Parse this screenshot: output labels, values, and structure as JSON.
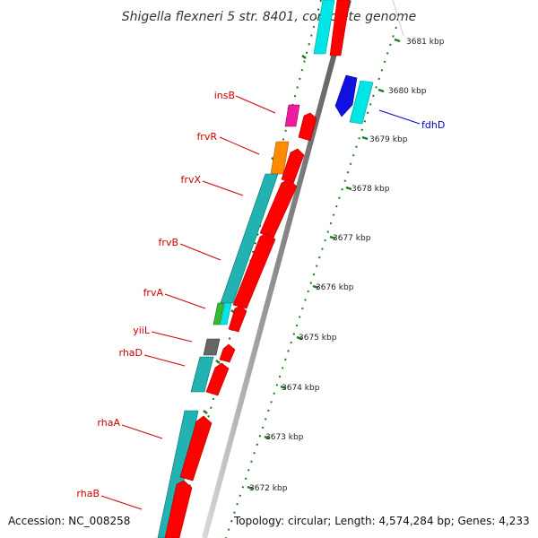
{
  "title": "Shigella flexneri 5 str. 8401, complete genome",
  "accession": "Accession: NC_008258",
  "topology": "Topology: circular; Length: 4,574,284 bp; Genes: 4,233",
  "colors": {
    "gene_label": "#cc0000",
    "fdhD_label": "#0000cc",
    "tick": "#1f7a1f",
    "track_gray": "#909090",
    "red_arrow": "#ff0000",
    "cyan": "#00e5e5",
    "teal": "#22b2b2",
    "magenta": "#ee1c9c",
    "orange": "#ff8a00",
    "green": "#33bb33",
    "gray_gene": "#666666",
    "blue": "#1010e0"
  },
  "kbp_labels": [
    "3681 kbp",
    "3680 kbp",
    "3679 kbp",
    "3678 kbp",
    "3677 kbp",
    "3676 kbp",
    "3675 kbp",
    "3674 kbp",
    "3673 kbp",
    "3672 kbp"
  ],
  "gene_labels": [
    "insB",
    "frvR",
    "frvX",
    "frvB",
    "frvA",
    "yiiL",
    "rhaD",
    "rhaA",
    "rhaB",
    "fdhD"
  ]
}
